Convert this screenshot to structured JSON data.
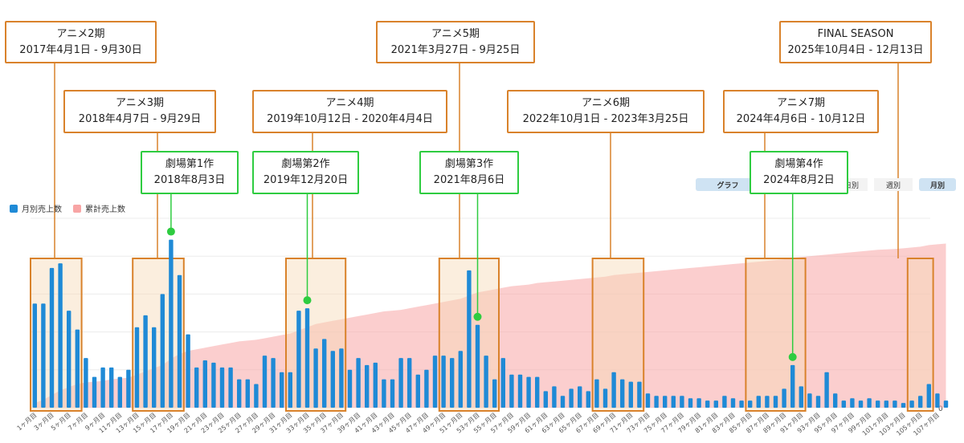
{
  "legend": {
    "monthly": {
      "label": "月別売上数",
      "color": "#1f8ad6"
    },
    "cumulative": {
      "label": "累計売上数",
      "color": "#f8a5a5"
    }
  },
  "controls": {
    "graph_label": "グラフ",
    "daily_label": "日別",
    "weekly_label": "週別",
    "monthly_label": "月別",
    "selected": "月別"
  },
  "annotations": {
    "anime2": {
      "title": "アニメ2期",
      "date": "2017年4月1日 - 9月30日"
    },
    "anime3": {
      "title": "アニメ3期",
      "date": "2018年4月7日 - 9月29日"
    },
    "movie1": {
      "title": "劇場第1作",
      "date": "2018年8月3日"
    },
    "anime4": {
      "title": "アニメ4期",
      "date": "2019年10月12日 - 2020年4月4日"
    },
    "movie2": {
      "title": "劇場第2作",
      "date": "2019年12月20日"
    },
    "anime5": {
      "title": "アニメ5期",
      "date": "2021年3月27日 - 9月25日"
    },
    "movie3": {
      "title": "劇場第3作",
      "date": "2021年8月6日"
    },
    "anime6": {
      "title": "アニメ6期",
      "date": "2022年10月1日 - 2023年3月25日"
    },
    "anime7": {
      "title": "アニメ7期",
      "date": "2024年4月6日 - 10月12日"
    },
    "movie4": {
      "title": "劇場第4作",
      "date": "2024年8月2日"
    },
    "final": {
      "title": "FINAL SEASON",
      "date": "2025年10月4日 - 12月13日"
    }
  },
  "chart_data": {
    "type": "bar",
    "title": "",
    "xlabel": "",
    "ylabel": "",
    "y_axis_min_label": "0",
    "grid": true,
    "legend_position": "top-left",
    "monthly_color": "#1f8ad6",
    "cumulative_color": "#f8a5a5",
    "highlight_fill": "#f6d9b5",
    "highlight_stroke": "#d9822b",
    "marker_color": "#2ecc40",
    "x_tick_labels": [
      "1ヶ月目",
      "3ヶ月目",
      "5ヶ月目",
      "7ヶ月目",
      "9ヶ月目",
      "11ヶ月目",
      "13ヶ月目",
      "15ヶ月目",
      "17ヶ月目",
      "19ヶ月目",
      "21ヶ月目",
      "23ヶ月目",
      "25ヶ月目",
      "27ヶ月目",
      "29ヶ月目",
      "31ヶ月目",
      "33ヶ月目",
      "35ヶ月目",
      "37ヶ月目",
      "39ヶ月目",
      "41ヶ月目",
      "43ヶ月目",
      "45ヶ月目",
      "47ヶ月目",
      "49ヶ月目",
      "51ヶ月目",
      "53ヶ月目",
      "55ヶ月目",
      "57ヶ月目",
      "59ヶ月目",
      "61ヶ月目",
      "63ヶ月目",
      "65ヶ月目",
      "67ヶ月目",
      "69ヶ月目",
      "71ヶ月目",
      "73ヶ月目",
      "75ヶ月目",
      "77ヶ月目",
      "79ヶ月目",
      "81ヶ月目",
      "83ヶ月目",
      "85ヶ月目",
      "87ヶ月目",
      "89ヶ月目",
      "91ヶ月目",
      "93ヶ月目",
      "95ヶ月目",
      "97ヶ月目",
      "99ヶ月目",
      "101ヶ月目",
      "103ヶ月目",
      "105ヶ月目",
      "107ヶ月目"
    ],
    "months": 108,
    "monthly_values": [
      44,
      44,
      59,
      61,
      41,
      33,
      21,
      13,
      17,
      17,
      13,
      16,
      34,
      39,
      34,
      48,
      71,
      56,
      31,
      17,
      20,
      19,
      17,
      17,
      12,
      12,
      10,
      22,
      21,
      15,
      15,
      41,
      42,
      25,
      29,
      24,
      25,
      16,
      21,
      18,
      19,
      12,
      12,
      21,
      21,
      14,
      16,
      22,
      22,
      21,
      24,
      58,
      35,
      22,
      12,
      21,
      14,
      14,
      13,
      13,
      7,
      9,
      5,
      8,
      9,
      7,
      12,
      8,
      15,
      12,
      11,
      11,
      6,
      5,
      5,
      5,
      5,
      4,
      4,
      3,
      3,
      5,
      4,
      3,
      3,
      5,
      5,
      5,
      8,
      18,
      9,
      6,
      5,
      15,
      6,
      3,
      4,
      3,
      4,
      3,
      3,
      3,
      2,
      3,
      5,
      10,
      6,
      3
    ],
    "cumulative_values": [
      3,
      5,
      8,
      11,
      13,
      15,
      16,
      16.5,
      17,
      18,
      18.5,
      19,
      21,
      23,
      25,
      27,
      31,
      34,
      36,
      37,
      38,
      39,
      40,
      41,
      42,
      42.5,
      43,
      44,
      45,
      46,
      47,
      49,
      51,
      53,
      54,
      55,
      56,
      57,
      58,
      59,
      60,
      61,
      61.5,
      62,
      63,
      64,
      65,
      66,
      67,
      68,
      69,
      71,
      73,
      74,
      75,
      76,
      77,
      77.5,
      78,
      79,
      79.5,
      80,
      80.5,
      81,
      81.5,
      82,
      82.5,
      83,
      84,
      84.5,
      85,
      85.5,
      86,
      86.5,
      87,
      87.5,
      88,
      88.5,
      89,
      89.5,
      90,
      90.5,
      91,
      91.5,
      92,
      92.5,
      93,
      93.5,
      94,
      95,
      95.5,
      96,
      96.5,
      97,
      97.5,
      98,
      98.5,
      99,
      99.5,
      100,
      100.3,
      100.6,
      101,
      101.5,
      102,
      103,
      103.5,
      104
    ],
    "ylim_monthly": [
      0,
      80
    ],
    "ylim_cumulative": [
      0,
      120
    ],
    "highlight_ranges": [
      {
        "id": "anime2",
        "start": 1,
        "end": 6
      },
      {
        "id": "anime3",
        "start": 13,
        "end": 18
      },
      {
        "id": "anime4",
        "start": 31,
        "end": 37
      },
      {
        "id": "anime5",
        "start": 49,
        "end": 55
      },
      {
        "id": "anime6",
        "start": 67,
        "end": 72
      },
      {
        "id": "anime7",
        "start": 85,
        "end": 91
      },
      {
        "id": "final",
        "start": 104,
        "end": 106
      }
    ],
    "movie_markers": [
      {
        "id": "movie1",
        "month": 17
      },
      {
        "id": "movie2",
        "month": 33
      },
      {
        "id": "movie3",
        "month": 53
      },
      {
        "id": "movie4",
        "month": 90
      }
    ]
  }
}
